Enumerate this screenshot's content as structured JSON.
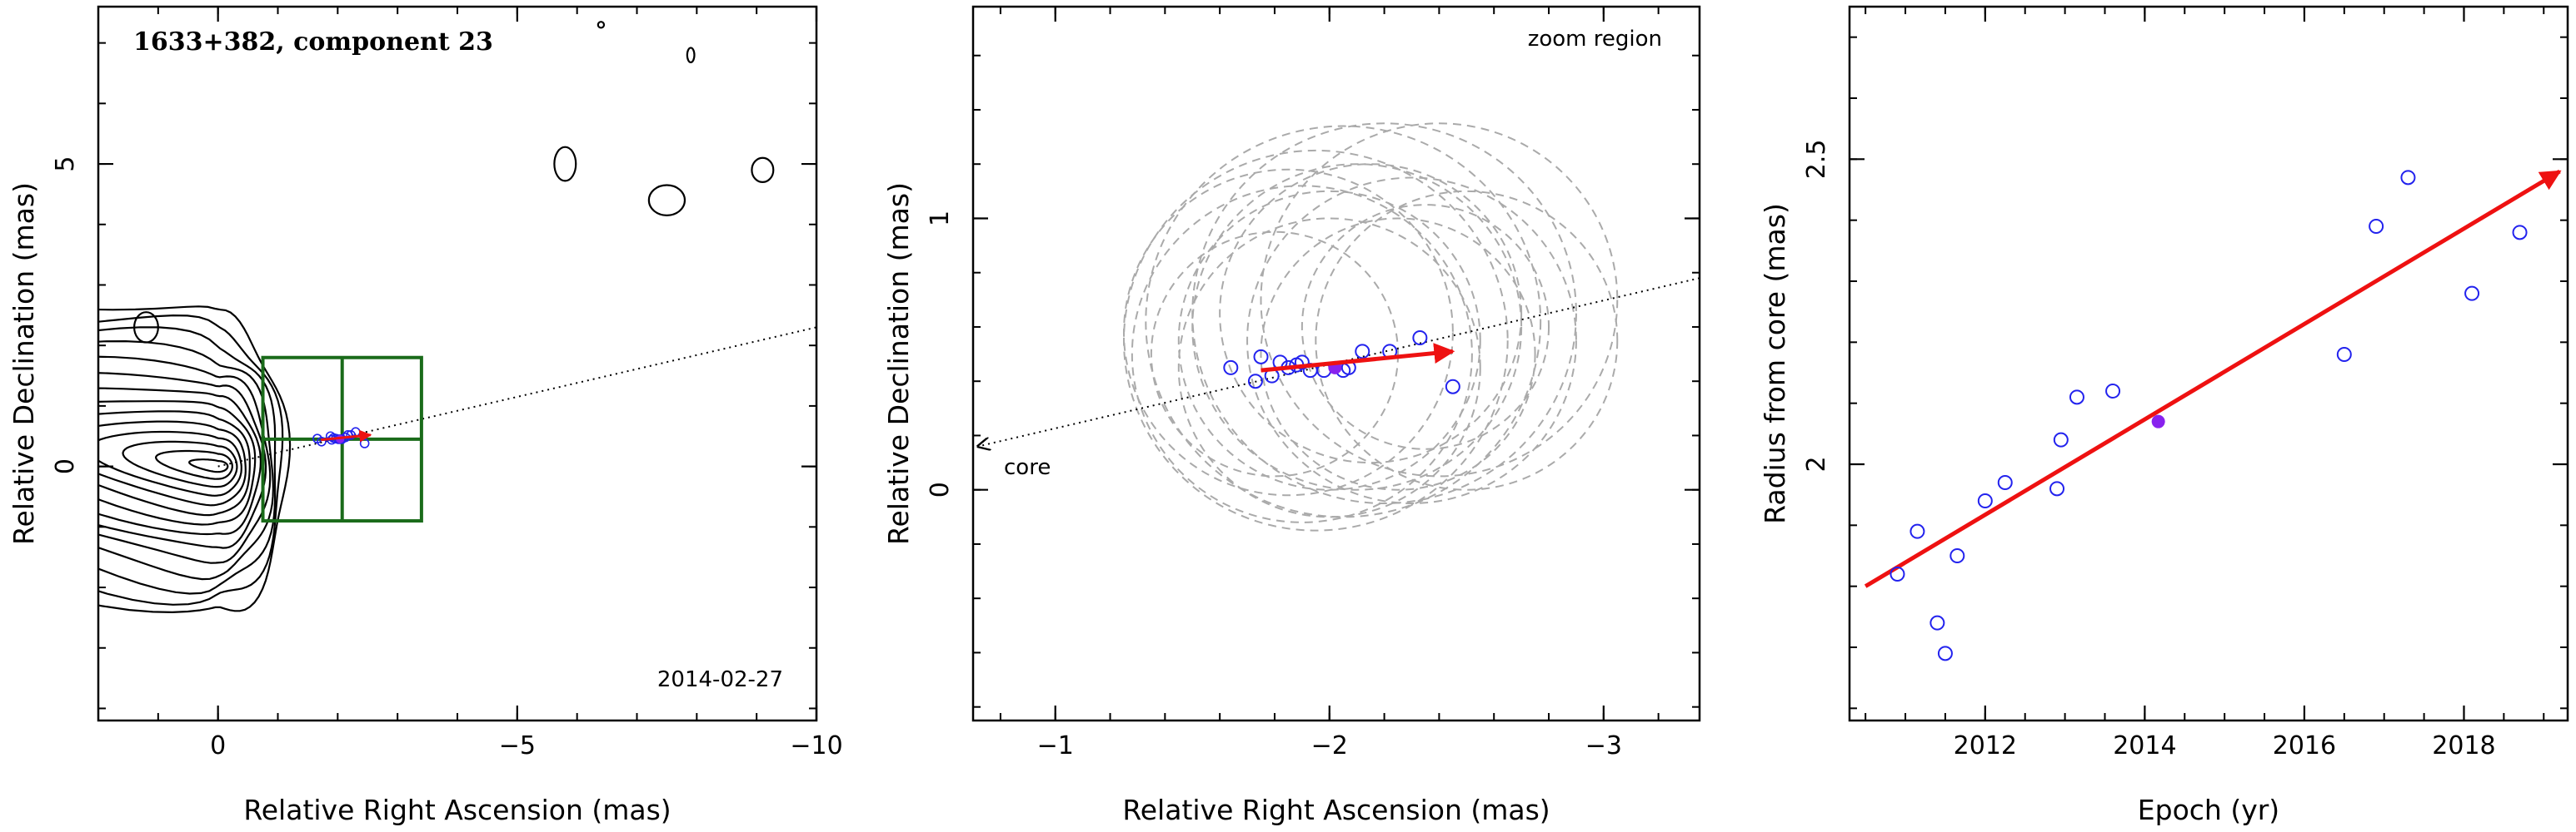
{
  "colors": {
    "contour": "#000000",
    "box": "#1a6b1a",
    "circle": "#aaaaaa",
    "point_open": "#2222ee",
    "point_filled": "#8822ee",
    "arrow": "#ee1111"
  },
  "chart_data": [
    {
      "type": "scatter",
      "panel": "left",
      "title": "1633+382, component 23",
      "date_label": "2014-02-27",
      "xlabel": "Relative Right Ascension (mas)",
      "ylabel": "Relative Declination (mas)",
      "xlim": [
        2,
        -10
      ],
      "ylim": [
        -4.2,
        7.6
      ],
      "xticks": [
        0,
        -5,
        -10
      ],
      "xtick_labels": [
        "0",
        "−5",
        "−10"
      ],
      "yticks": [
        0,
        5
      ],
      "ytick_labels": [
        "0",
        "5"
      ],
      "components": {
        "x": [
          -1.73,
          -1.66,
          -1.88,
          -1.9,
          -1.93,
          -1.97,
          -2.01,
          -2.04,
          -2.07,
          -2.13,
          -2.17,
          -2.22,
          -2.3,
          -2.45
        ],
        "y": [
          0.41,
          0.46,
          0.5,
          0.44,
          0.47,
          0.46,
          0.45,
          0.45,
          0.45,
          0.48,
          0.52,
          0.52,
          0.57,
          0.38
        ]
      },
      "epoch_component": {
        "x": -2.04,
        "y": 0.45
      },
      "jet_direction_line": {
        "x": [
          0,
          -10
        ],
        "y": [
          0,
          2.3
        ]
      },
      "zoom_box": {
        "x": [
          -0.75,
          -3.4
        ],
        "y": [
          -0.9,
          1.8
        ]
      },
      "motion_vector": {
        "x": [
          -1.72,
          -2.55
        ],
        "y": [
          0.44,
          0.52
        ]
      }
    },
    {
      "type": "scatter",
      "panel": "middle",
      "label": "zoom region",
      "core_label": "core",
      "xlabel": "Relative Right Ascension (mas)",
      "ylabel": "Relative Declination (mas)",
      "xlim": [
        -0.7,
        -3.35
      ],
      "ylim": [
        -0.85,
        1.78
      ],
      "xticks": [
        -1,
        -2,
        -3
      ],
      "xtick_labels": [
        "−1",
        "−2",
        "−3"
      ],
      "yticks": [
        0,
        1
      ],
      "ytick_labels": [
        "0",
        "1"
      ],
      "components": {
        "x": [
          -1.64,
          -1.73,
          -1.75,
          -1.79,
          -1.82,
          -1.85,
          -1.88,
          -1.9,
          -1.93,
          -1.98,
          -2.05,
          -2.07,
          -2.12,
          -2.22,
          -2.33,
          -2.45
        ],
        "y": [
          0.45,
          0.4,
          0.49,
          0.42,
          0.47,
          0.45,
          0.46,
          0.47,
          0.44,
          0.44,
          0.44,
          0.45,
          0.51,
          0.51,
          0.56,
          0.38
        ]
      },
      "epoch_component": {
        "x": -2.02,
        "y": 0.45
      },
      "motion_vector": {
        "x": [
          -1.75,
          -2.45
        ],
        "y": [
          0.44,
          0.51
        ]
      },
      "jet_direction_line": {
        "x": [
          -0.7,
          -3.35
        ],
        "y": [
          0.16,
          0.78
        ]
      },
      "component_sizes": {
        "cx": [
          -2.0,
          -2.1,
          -1.9,
          -2.3,
          -2.2,
          -1.8,
          -2.4,
          -2.0,
          -1.95,
          -2.15,
          -2.25,
          -2.05,
          -1.85,
          -2.35,
          -2.5
        ],
        "cy": [
          0.55,
          0.6,
          0.5,
          0.55,
          0.65,
          0.5,
          0.7,
          0.45,
          0.55,
          0.65,
          0.5,
          0.62,
          0.58,
          0.6,
          0.55
        ],
        "r": [
          0.55,
          0.6,
          0.62,
          0.6,
          0.7,
          0.45,
          0.65,
          0.55,
          0.7,
          0.55,
          0.5,
          0.72,
          0.6,
          0.45,
          0.55
        ]
      }
    },
    {
      "type": "scatter",
      "panel": "right",
      "xlabel": "Epoch (yr)",
      "ylabel": "Radius from core (mas)",
      "xlim": [
        2010.3,
        2019.3
      ],
      "ylim": [
        1.58,
        2.75
      ],
      "xticks": [
        2012,
        2014,
        2016,
        2018
      ],
      "xtick_labels": [
        "2012",
        "2014",
        "2016",
        "2018"
      ],
      "yticks": [
        2,
        2.5
      ],
      "ytick_labels": [
        "2",
        "2.5"
      ],
      "points": {
        "x": [
          2010.9,
          2011.15,
          2011.4,
          2011.5,
          2011.65,
          2012.0,
          2012.25,
          2012.9,
          2012.95,
          2013.15,
          2013.6,
          2016.5,
          2016.9,
          2017.3,
          2018.1,
          2018.7
        ],
        "y": [
          1.82,
          1.89,
          1.74,
          1.69,
          1.85,
          1.94,
          1.97,
          1.96,
          2.04,
          2.11,
          2.12,
          2.18,
          2.39,
          2.47,
          2.28,
          2.38
        ]
      },
      "epoch_point": {
        "x": 2014.17,
        "y": 2.07
      },
      "fit_line": {
        "x": [
          2010.5,
          2019.2
        ],
        "y": [
          1.8,
          2.48
        ]
      }
    }
  ]
}
